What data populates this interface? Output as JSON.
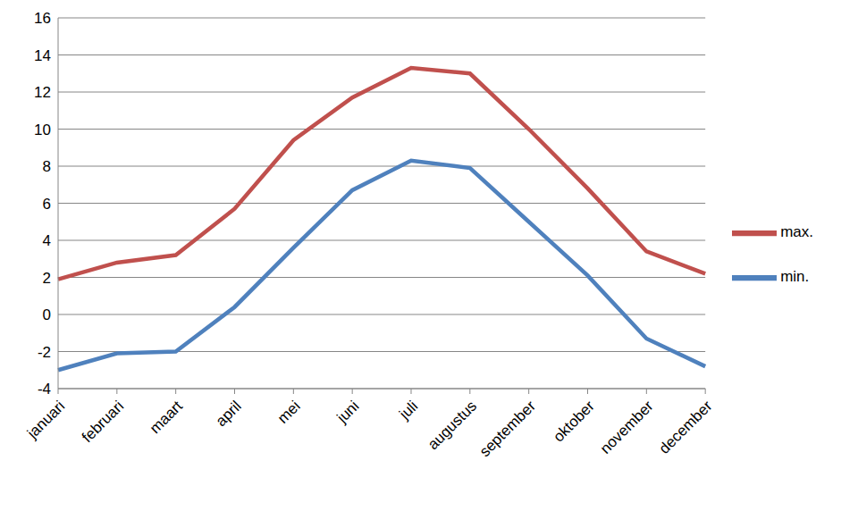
{
  "chart_data": {
    "type": "line",
    "categories": [
      "januari",
      "februari",
      "maart",
      "april",
      "mei",
      "juni",
      "juli",
      "augustus",
      "september",
      "oktober",
      "november",
      "december"
    ],
    "series": [
      {
        "name": "max.",
        "color": "#c0504d",
        "values": [
          1.9,
          2.8,
          3.2,
          5.7,
          9.4,
          11.7,
          13.3,
          13.0,
          10.0,
          6.8,
          3.4,
          2.2
        ]
      },
      {
        "name": "min.",
        "color": "#4f81bd",
        "values": [
          -3.0,
          -2.1,
          -2.0,
          0.4,
          3.6,
          6.7,
          8.3,
          7.9,
          5.0,
          2.1,
          -1.3,
          -2.8
        ]
      }
    ],
    "ylim": [
      -4,
      16
    ],
    "yticks": [
      -4,
      -2,
      0,
      2,
      4,
      6,
      8,
      10,
      12,
      14,
      16
    ],
    "grid": true,
    "legend": "right"
  }
}
